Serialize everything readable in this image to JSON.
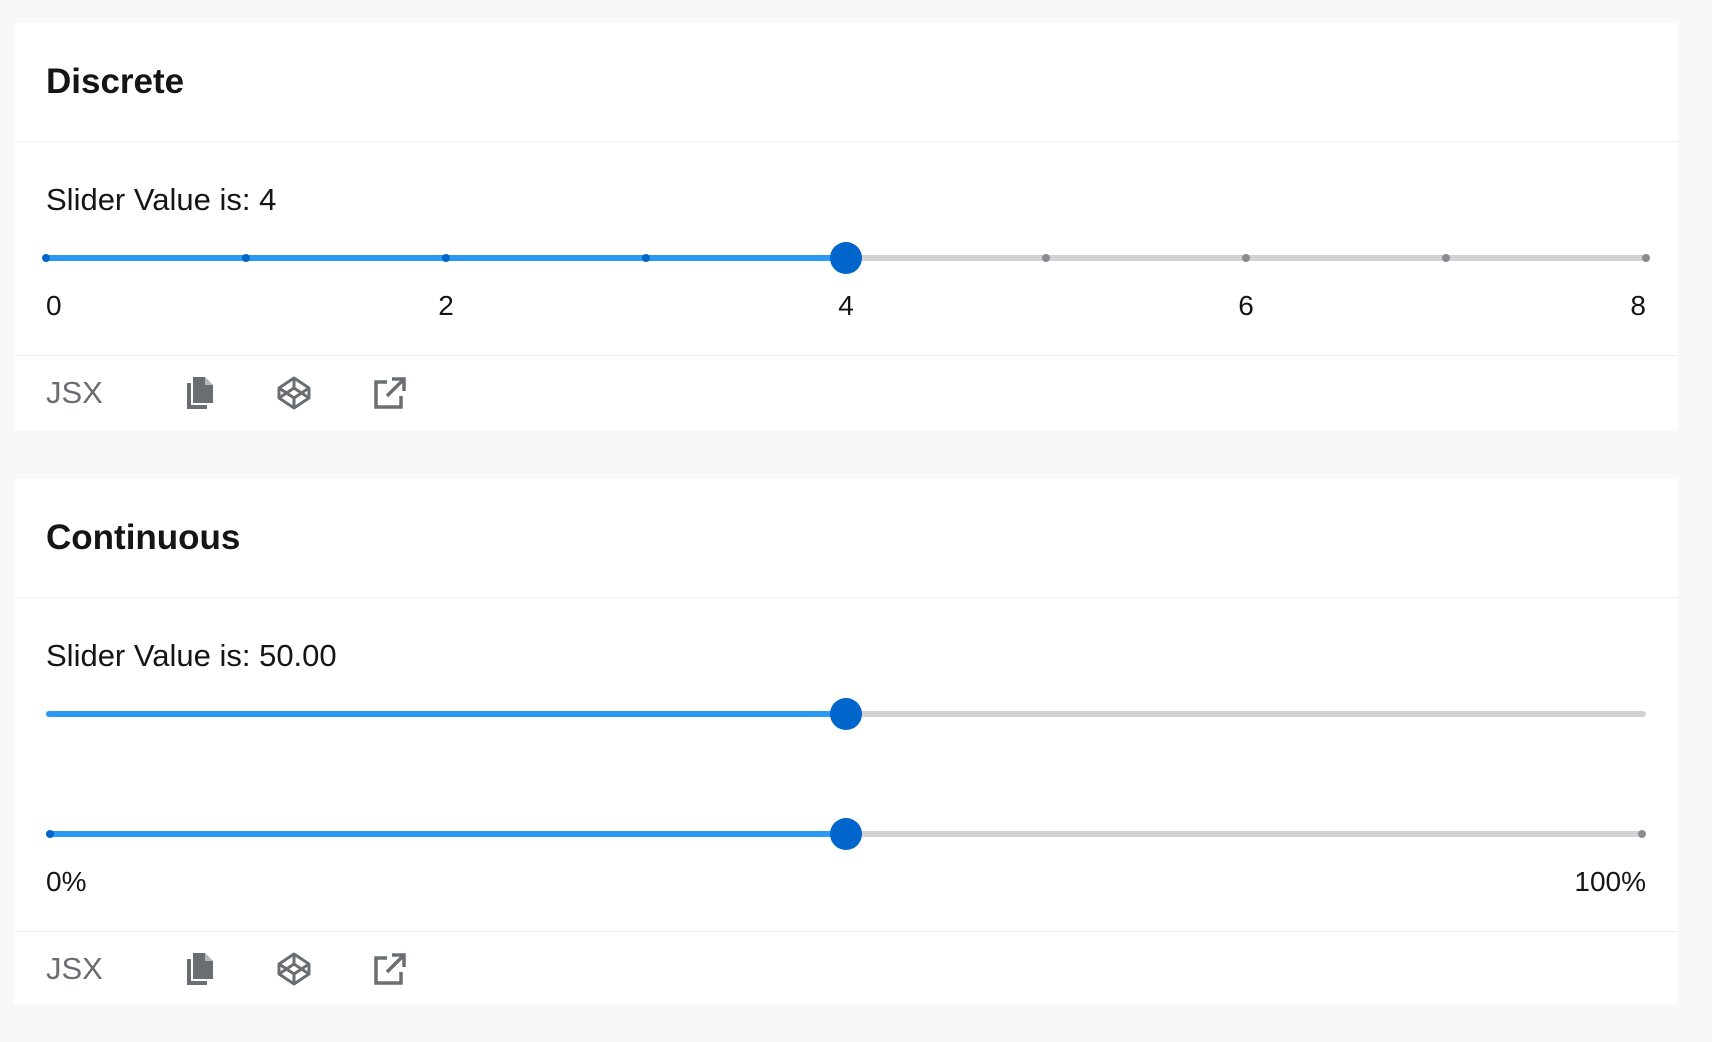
{
  "discrete": {
    "title": "Discrete",
    "value_label": "Slider Value is: 4",
    "slider": {
      "min": 0,
      "max": 8,
      "step": 1,
      "value": 4
    },
    "tick_labels": [
      "0",
      "2",
      "4",
      "6",
      "8"
    ],
    "footer": {
      "jsx_label": "JSX"
    }
  },
  "continuous": {
    "title": "Continuous",
    "value_label": "Slider Value is: 50.00",
    "slider_primary": {
      "min": 0,
      "max": 100,
      "value": 50
    },
    "slider_secondary": {
      "min": 0,
      "max": 100,
      "value": 50
    },
    "range_labels": [
      "0%",
      "100%"
    ],
    "footer": {
      "jsx_label": "JSX"
    }
  },
  "icons": {
    "copy": "copy-icon",
    "codepen": "codepen-icon",
    "external": "external-link-icon"
  },
  "colors": {
    "accent": "#0066cc",
    "fill": "#2b9af3",
    "track": "#d2d2d2",
    "tick_off": "#8a8d90",
    "muted": "#6a6e73"
  }
}
